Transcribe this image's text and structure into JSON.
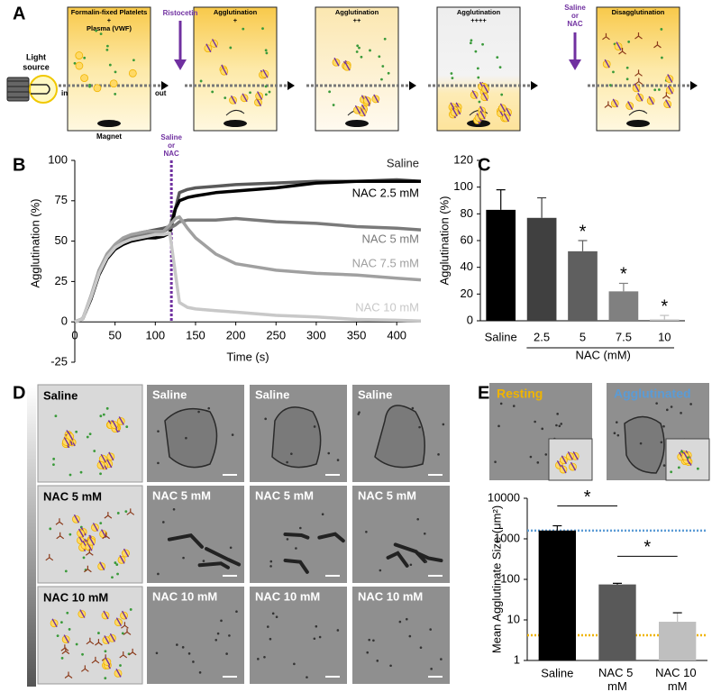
{
  "panel_labels": [
    "A",
    "B",
    "C",
    "D",
    "E"
  ],
  "panel_a": {
    "light_source": [
      "Light",
      "source"
    ],
    "in": "in",
    "out": "out",
    "magnet": "Magnet",
    "ristocetin": "Ristocetin",
    "addition": [
      "Saline",
      "or",
      "NAC"
    ],
    "beakers": [
      {
        "title": [
          "Formalin-fixed Platelets",
          "+",
          "Plasma (VWF)"
        ]
      },
      {
        "title": [
          "Agglutination",
          "+"
        ]
      },
      {
        "title": [
          "Agglutination",
          "++"
        ]
      },
      {
        "title": [
          "Agglutination",
          "++++"
        ]
      },
      {
        "title": [
          "Disagglutination"
        ]
      }
    ]
  },
  "chart_data": [
    {
      "type": "line",
      "xlabel": "Time (s)",
      "ylabel": "Agglutination (%)",
      "x": [
        0,
        10,
        20,
        30,
        40,
        50,
        60,
        70,
        80,
        90,
        100,
        110,
        118,
        125,
        130,
        140,
        150,
        175,
        200,
        250,
        300,
        350,
        400,
        430
      ],
      "xlim": [
        0,
        430
      ],
      "xticks": [
        0,
        50,
        100,
        150,
        200,
        250,
        300,
        350,
        400
      ],
      "ylim": [
        -25,
        100
      ],
      "yticks": [
        -25,
        0,
        25,
        50,
        75,
        100
      ],
      "series": [
        {
          "name": "Saline",
          "color": "#5a5a5a",
          "values": [
            0,
            2,
            15,
            31,
            41,
            47,
            51,
            53,
            55,
            56,
            57,
            58,
            59,
            70,
            80,
            82,
            83,
            84,
            85,
            86,
            87,
            87,
            88,
            87
          ]
        },
        {
          "name": "NAC 2.5 mM",
          "color": "#000000",
          "values": [
            0,
            2,
            14,
            29,
            39,
            45,
            48,
            50,
            51,
            52,
            52,
            53,
            55,
            70,
            75,
            77,
            78,
            80,
            81,
            83,
            86,
            87,
            87,
            87
          ]
        },
        {
          "name": "NAC 5 mM",
          "color": "#7a7a7a",
          "values": [
            0,
            2,
            15,
            30,
            40,
            46,
            50,
            52,
            53,
            54,
            55,
            56,
            58,
            60,
            62,
            63,
            63,
            63,
            64,
            62,
            61,
            59,
            58,
            57
          ]
        },
        {
          "name": "NAC 7.5 mM",
          "color": "#a0a0a0",
          "values": [
            0,
            2,
            16,
            32,
            42,
            48,
            52,
            54,
            55,
            56,
            56,
            56,
            60,
            64,
            65,
            58,
            52,
            42,
            36,
            32,
            30,
            29,
            27,
            26
          ]
        },
        {
          "name": "NAC 10 mM",
          "color": "#c8c8c8",
          "values": [
            0,
            2,
            15,
            30,
            40,
            46,
            49,
            51,
            52,
            53,
            54,
            54,
            55,
            30,
            12,
            9,
            8,
            7,
            6,
            4,
            3,
            1.5,
            1,
            0.5
          ]
        }
      ],
      "event": {
        "x": 120,
        "label": [
          "Saline",
          "or",
          "NAC"
        ],
        "color": "#7030a0"
      }
    },
    {
      "type": "bar",
      "ylabel": "Agglutination (%)",
      "xlabel": "NAC (mM)",
      "categories": [
        "Saline",
        "2.5",
        "5",
        "7.5",
        "10"
      ],
      "values": [
        83,
        77,
        52,
        22,
        1
      ],
      "errors": [
        15,
        15,
        8,
        6,
        3
      ],
      "colors": [
        "#000000",
        "#404040",
        "#5f5f5f",
        "#808080",
        "#bfbfbf"
      ],
      "ylim": [
        0,
        120
      ],
      "yticks": [
        0,
        20,
        40,
        60,
        80,
        100,
        120
      ],
      "significance": [
        null,
        null,
        "*",
        "*",
        "*"
      ]
    },
    {
      "type": "bar",
      "log_scale": true,
      "ylabel": "Mean Agglutinate Size (μm²)",
      "categories": [
        "Saline",
        "NAC 5 mM",
        "NAC 10 mM"
      ],
      "values": [
        1600,
        75,
        9
      ],
      "errors": [
        500,
        5,
        6
      ],
      "colors": [
        "#000000",
        "#595959",
        "#bfbfbf"
      ],
      "ylim": [
        1,
        10000
      ],
      "yticks": [
        1,
        10,
        100,
        1000,
        10000
      ],
      "reference_lines": [
        {
          "value": 1600,
          "color": "#5b9bd5"
        },
        {
          "value": 4.2,
          "color": "#f0b400"
        }
      ],
      "comparisons": [
        {
          "between": [
            "Saline",
            "NAC 5 mM"
          ],
          "label": "*"
        },
        {
          "between": [
            "NAC 5 mM",
            "NAC 10 mM"
          ],
          "label": "*"
        }
      ]
    }
  ],
  "panel_d": {
    "rows": [
      {
        "label": "Saline",
        "images": [
          "Saline",
          "Saline",
          "Saline"
        ]
      },
      {
        "label": "NAC 5 mM",
        "images": [
          "NAC 5 mM",
          "NAC 5 mM",
          "NAC 5 mM"
        ]
      },
      {
        "label": "NAC 10 mM",
        "images": [
          "NAC 10 mM",
          "NAC 10 mM",
          "NAC 10 mM"
        ]
      }
    ]
  },
  "panel_e_images": [
    {
      "label": "Resting",
      "color": "#f0b400"
    },
    {
      "label": "Agglutinated",
      "color": "#5b9bd5"
    }
  ]
}
